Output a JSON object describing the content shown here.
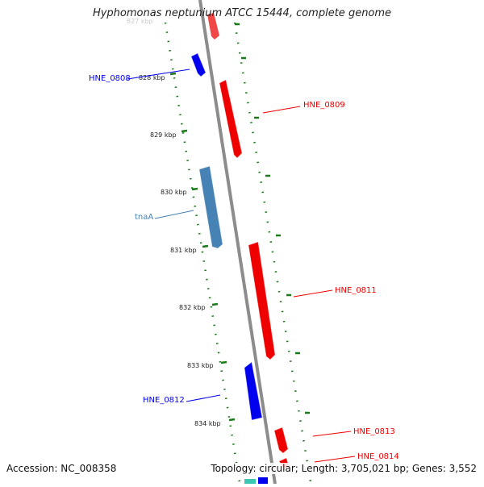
{
  "title": "Hyphomonas neptunium ATCC 15444, complete genome",
  "faint_label": "827 kbp",
  "footer": {
    "accession": "Accession: NC_008358",
    "topology": "Topology: circular; Length: 3,705,021 bp; Genes: 3,552"
  },
  "ticks": [
    {
      "label": "828 kbp"
    },
    {
      "label": "829 kbp"
    },
    {
      "label": "830 kbp"
    },
    {
      "label": "831 kbp"
    },
    {
      "label": "832 kbp"
    },
    {
      "label": "833 kbp"
    },
    {
      "label": "834 kbp"
    }
  ],
  "genes": [
    {
      "label": "HNE_0808",
      "strand": "minus",
      "color": "#0000ee"
    },
    {
      "label": "HNE_0809",
      "strand": "plus",
      "color": "#ee0000"
    },
    {
      "label": "tnaA",
      "strand": "minus",
      "color": "#4682b4"
    },
    {
      "label": "HNE_0811",
      "strand": "plus",
      "color": "#ee0000"
    },
    {
      "label": "HNE_0812",
      "strand": "minus",
      "color": "#0000ee"
    },
    {
      "label": "HNE_0813",
      "strand": "plus",
      "color": "#ee0000"
    },
    {
      "label": "HNE_0814",
      "strand": "plus",
      "color": "#ee0000"
    }
  ],
  "colors": {
    "backbone": "#8c8c8c",
    "tick_track": "#1a7a1a",
    "plus_strand": "#ee0000",
    "minus_strand": "#0000ee"
  }
}
